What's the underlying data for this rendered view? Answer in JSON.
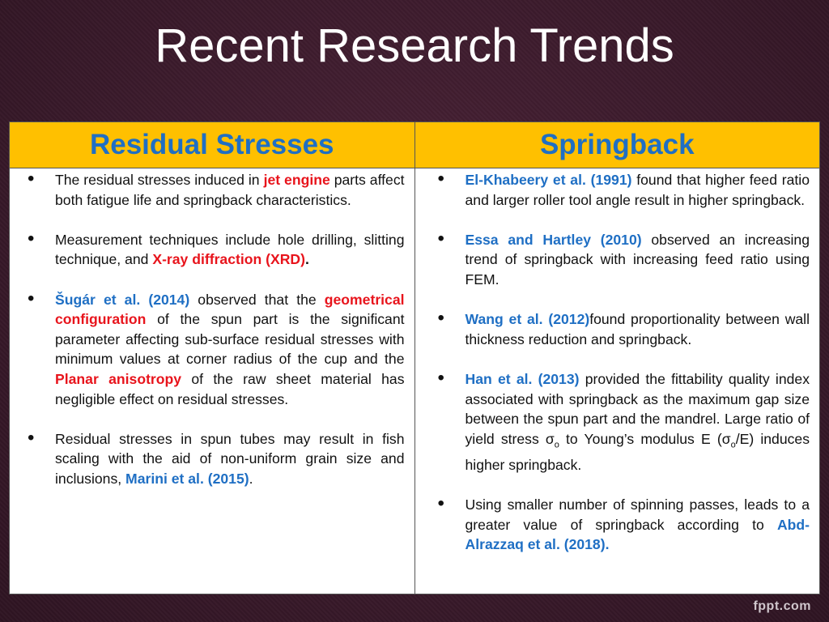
{
  "title": "Recent Research Trends",
  "footer": "fppt.com",
  "columns": {
    "left_header": "Residual Stresses",
    "right_header": "Springback"
  },
  "left": {
    "b1": {
      "t1": "The residual stresses induced in ",
      "h1": "jet engine",
      "t2": " parts affect both fatigue life and springback characteristics."
    },
    "b2": {
      "t1": "Measurement techniques include hole drilling, slitting technique, and ",
      "h1": "X-ray diffraction (XRD)",
      "t2": "."
    },
    "b3": {
      "h1": "Šugár et al. (2014)",
      "t1": " observed that the ",
      "h2": "geometrical configuration",
      "t2": " of the spun part is the significant parameter affecting sub-surface residual stresses with minimum values at corner radius of the cup and the ",
      "h3": "Planar anisotropy",
      "t3": " of the raw sheet material has negligible effect on residual stresses."
    },
    "b4": {
      "t1": "Residual stresses in spun tubes may result in fish scaling with the aid of non-uniform grain size and inclusions, ",
      "h1": "Marini et al. (2015)",
      "t2": "."
    }
  },
  "right": {
    "b1": {
      "h1": "El-Khabeery et al. (1991)",
      "t1": " found that higher feed ratio and larger roller tool angle result in higher springback."
    },
    "b2": {
      "h1": "Essa and Hartley (2010)",
      "t1": " observed an increasing trend of springback with increasing feed ratio using FEM."
    },
    "b3": {
      "h1": "Wang et al. (2012)",
      "t1": "found proportionality between wall thickness reduction and springback."
    },
    "b4": {
      "h1": "Han et al. (2013)",
      "t1": " provided the fittability quality index associated with springback as the maximum gap size between the spun part and the mandrel. Large ratio of yield stress σ",
      "s1": "o",
      "t2": " to Young’s modulus E (σ",
      "s2": "o",
      "t3": "/E) induces higher springback."
    },
    "b5": {
      "t1": "Using smaller number of spinning passes, leads to a greater value of springback according to ",
      "h1": "Abd-Alrazzaq et al. (2018)."
    }
  }
}
